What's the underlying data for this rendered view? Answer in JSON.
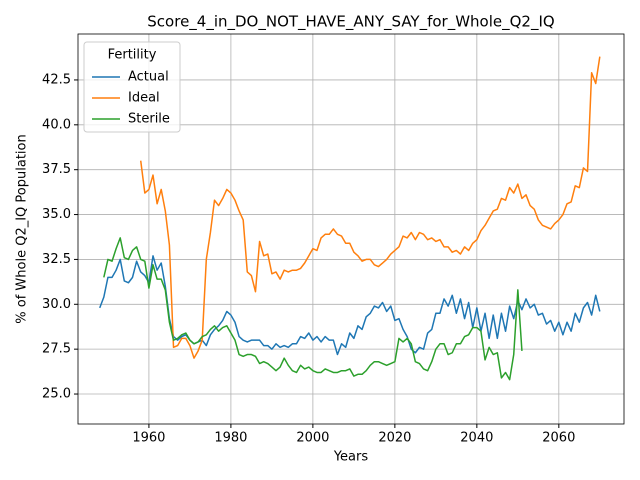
{
  "chart_data": {
    "type": "line",
    "title": "Score_4_in_DO_NOT_HAVE_ANY_SAY_for_Whole_Q2_IQ",
    "x_label": "Years",
    "y_label": "% of Whole Q2_IQ Population",
    "legend_title": "Fertility",
    "legend": "upper left",
    "grid": true,
    "xlim": [
      1942.7,
      2075.9
    ],
    "ylim": [
      23.33,
      45.06
    ],
    "xticks": [
      1960,
      1980,
      2000,
      2020,
      2040,
      2060
    ],
    "yticks": [
      {
        "value": 25,
        "label": "25.0"
      },
      27.5,
      {
        "value": 30,
        "label": "30.0"
      },
      32.5,
      {
        "value": 35,
        "label": "35.0"
      },
      37.5,
      {
        "value": 40,
        "label": "40.0"
      },
      42.5
    ],
    "x": [
      1948,
      1949,
      1950,
      1951,
      1952,
      1953,
      1954,
      1955,
      1956,
      1957,
      1958,
      1959,
      1960,
      1961,
      1962,
      1963,
      1964,
      1965,
      1966,
      1967,
      1968,
      1969,
      1970,
      1971,
      1972,
      1973,
      1974,
      1975,
      1976,
      1977,
      1978,
      1979,
      1980,
      1981,
      1982,
      1983,
      1984,
      1985,
      1986,
      1987,
      1988,
      1989,
      1990,
      1991,
      1992,
      1993,
      1994,
      1995,
      1996,
      1997,
      1998,
      1999,
      2000,
      2001,
      2002,
      2003,
      2004,
      2005,
      2006,
      2007,
      2008,
      2009,
      2010,
      2011,
      2012,
      2013,
      2014,
      2015,
      2016,
      2017,
      2018,
      2019,
      2020,
      2021,
      2022,
      2023,
      2024,
      2025,
      2026,
      2027,
      2028,
      2029,
      2030,
      2031,
      2032,
      2033,
      2034,
      2035,
      2036,
      2037,
      2038,
      2039,
      2040,
      2041,
      2042,
      2043,
      2044,
      2045,
      2046,
      2047,
      2048,
      2049,
      2050,
      2051,
      2052,
      2053,
      2054,
      2055,
      2056,
      2057,
      2058,
      2059,
      2060,
      2061,
      2062,
      2063,
      2064,
      2065,
      2066,
      2067,
      2068,
      2069,
      2070
    ],
    "series": [
      {
        "name": "Actual",
        "color": "#1f77b4",
        "values": [
          29.8,
          30.4,
          31.5,
          31.5,
          31.9,
          32.5,
          31.3,
          31.2,
          31.5,
          32.4,
          31.8,
          31.6,
          31.2,
          32.7,
          31.9,
          32.3,
          31.0,
          29.2,
          28.2,
          28.0,
          28.2,
          28.3,
          28.0,
          27.8,
          27.9,
          28.0,
          27.7,
          28.3,
          28.6,
          28.8,
          29.1,
          29.6,
          29.4,
          29.0,
          28.2,
          28.0,
          27.9,
          28.0,
          28.0,
          28.0,
          27.7,
          27.7,
          27.5,
          27.8,
          27.6,
          27.7,
          27.6,
          27.8,
          27.8,
          28.2,
          28.1,
          28.4,
          28.0,
          28.2,
          27.9,
          28.2,
          28.0,
          28.0,
          27.2,
          27.8,
          27.6,
          28.4,
          28.1,
          28.8,
          28.6,
          29.3,
          29.5,
          29.9,
          29.8,
          30.1,
          29.6,
          29.9,
          29.1,
          29.2,
          28.6,
          28.2,
          27.5,
          27.3,
          27.6,
          27.5,
          28.4,
          28.6,
          29.5,
          29.5,
          30.3,
          29.9,
          30.5,
          29.5,
          30.3,
          29.2,
          30.1,
          28.7,
          29.8,
          28.5,
          29.5,
          28.1,
          29.4,
          28.1,
          29.5,
          28.5,
          29.9,
          29.2,
          30.2,
          29.7,
          30.3,
          29.8,
          30.0,
          29.4,
          29.5,
          28.9,
          29.1,
          28.5,
          29.0,
          28.3,
          29.0,
          28.5,
          29.5,
          29.0,
          29.8,
          30.1,
          29.4,
          30.5,
          29.6
        ]
      },
      {
        "name": "Ideal",
        "color": "#ff7f0e",
        "values": [
          null,
          null,
          null,
          null,
          null,
          null,
          null,
          null,
          null,
          null,
          38.0,
          36.2,
          36.4,
          37.2,
          35.6,
          36.4,
          35.2,
          33.3,
          27.6,
          27.7,
          28.1,
          28.1,
          27.7,
          27.0,
          27.4,
          28.0,
          32.5,
          34.0,
          35.8,
          35.5,
          35.9,
          36.4,
          36.2,
          35.8,
          35.2,
          34.7,
          31.8,
          31.6,
          30.7,
          33.5,
          32.7,
          32.8,
          31.7,
          31.8,
          31.4,
          31.9,
          31.8,
          31.9,
          31.9,
          32.0,
          32.3,
          32.7,
          33.1,
          33.0,
          33.7,
          33.9,
          33.9,
          34.2,
          33.9,
          33.8,
          33.4,
          33.4,
          32.9,
          32.7,
          32.4,
          32.5,
          32.5,
          32.2,
          32.1,
          32.3,
          32.5,
          32.8,
          33.0,
          33.2,
          33.8,
          33.7,
          34.0,
          33.6,
          34.0,
          33.9,
          33.6,
          33.7,
          33.5,
          33.6,
          33.2,
          33.2,
          32.9,
          33.0,
          32.8,
          33.2,
          33.0,
          33.4,
          33.6,
          34.1,
          34.4,
          34.8,
          35.2,
          35.3,
          35.9,
          35.8,
          36.5,
          36.2,
          36.7,
          35.9,
          36.1,
          35.5,
          35.3,
          34.7,
          34.4,
          34.3,
          34.2,
          34.5,
          34.7,
          35.0,
          35.6,
          35.7,
          36.6,
          36.5,
          37.6,
          37.4,
          42.9,
          42.3,
          43.8
        ]
      },
      {
        "name": "Sterile",
        "color": "#2ca02c",
        "values": [
          null,
          31.5,
          32.5,
          32.4,
          33.1,
          33.7,
          32.6,
          32.5,
          33.0,
          33.2,
          32.5,
          32.4,
          30.9,
          32.2,
          31.4,
          31.4,
          30.8,
          29.0,
          28.0,
          28.1,
          28.3,
          28.4,
          28.0,
          27.8,
          27.9,
          28.2,
          28.3,
          28.6,
          28.8,
          28.5,
          28.7,
          28.8,
          28.4,
          28.0,
          27.2,
          27.1,
          27.2,
          27.2,
          27.1,
          26.7,
          26.8,
          26.7,
          26.5,
          26.3,
          26.5,
          27.0,
          26.6,
          26.3,
          26.2,
          26.6,
          26.4,
          26.5,
          26.3,
          26.2,
          26.2,
          26.4,
          26.3,
          26.2,
          26.2,
          26.3,
          26.3,
          26.4,
          26.0,
          26.1,
          26.1,
          26.3,
          26.6,
          26.8,
          26.8,
          26.7,
          26.6,
          26.7,
          26.8,
          28.1,
          27.9,
          28.1,
          27.8,
          26.8,
          26.7,
          26.4,
          26.3,
          26.8,
          27.5,
          27.8,
          27.8,
          27.2,
          27.3,
          27.8,
          27.8,
          28.2,
          28.3,
          28.7,
          28.7,
          28.5,
          26.9,
          27.6,
          27.2,
          27.3,
          25.9,
          26.2,
          25.8,
          27.2,
          30.8,
          27.4,
          null,
          null,
          null,
          null,
          null,
          null,
          null,
          null,
          null,
          null,
          null,
          null,
          null,
          null,
          null,
          null,
          null,
          null,
          null
        ]
      }
    ]
  }
}
